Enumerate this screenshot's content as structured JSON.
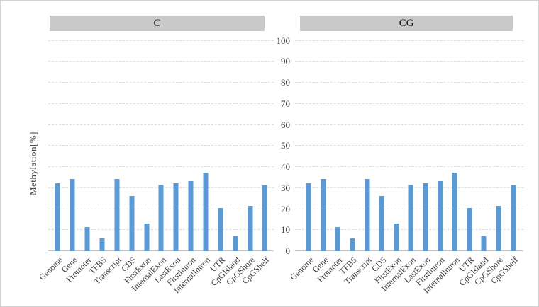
{
  "chart_data": {
    "type": "bar",
    "title": "",
    "xlabel": "",
    "ylabel": "Methylation[%]",
    "ylim": [
      0,
      100
    ],
    "yticks": [
      0,
      10,
      20,
      30,
      40,
      50,
      60,
      70,
      80,
      90,
      100
    ],
    "grid": "horizontal-dashed",
    "legend": "none",
    "layout": "two-facet-panels-sharing-central-y-axis-labels",
    "categories": [
      "Genome",
      "Gene",
      "Promoter",
      "TFBS",
      "Transcript",
      "CDS",
      "FirstExon",
      "InternalExon",
      "LastExon",
      "FirstIntron",
      "InternalIntron",
      "UTR",
      "CpGIsland",
      "CpGShore",
      "CpGShelf"
    ],
    "panels": [
      {
        "title": "C",
        "values": [
          32.2,
          34.3,
          11.5,
          6.2,
          34.3,
          26.3,
          13.2,
          31.6,
          32.2,
          33.3,
          37.3,
          20.4,
          7.2,
          21.4,
          31.2
        ]
      },
      {
        "title": "CG",
        "values": [
          32.2,
          34.3,
          11.5,
          6.2,
          34.3,
          26.3,
          13.2,
          31.6,
          32.2,
          33.3,
          37.3,
          20.4,
          7.2,
          21.4,
          31.2
        ]
      }
    ],
    "colors": {
      "bar": "#5b9bd5",
      "strip_background": "#c9c9c9",
      "gridline": "#dddddd",
      "axis_line": "#c2c2c2",
      "tick_text": "#444444",
      "title_text": "#1a1a1a"
    }
  }
}
